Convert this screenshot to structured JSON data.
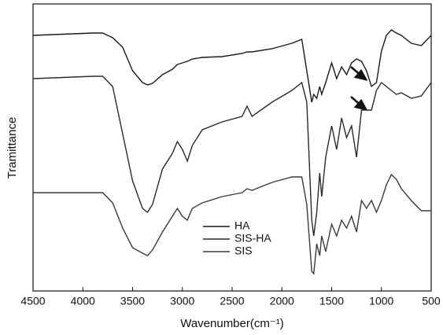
{
  "chart_data": {
    "type": "line",
    "xlabel": "Wavenumber(cm⁻¹)",
    "ylabel": "Tramittance",
    "x": [
      4500,
      4300,
      4100,
      3900,
      3800,
      3700,
      3600,
      3500,
      3400,
      3350,
      3300,
      3200,
      3100,
      3050,
      3000,
      2950,
      2900,
      2800,
      2600,
      2400,
      2350,
      2300,
      2100,
      1900,
      1800,
      1750,
      1700,
      1680,
      1650,
      1620,
      1600,
      1560,
      1500,
      1450,
      1400,
      1350,
      1300,
      1250,
      1200,
      1150,
      1100,
      1050,
      1000,
      950,
      900,
      850,
      800,
      700,
      600,
      500
    ],
    "series": [
      {
        "name": "HA",
        "color": "#1a1a1a",
        "values": [
          325,
          326,
          327,
          328,
          328,
          322,
          310,
          280,
          265,
          262,
          264,
          275,
          282,
          288,
          290,
          292,
          295,
          297,
          298,
          302,
          304,
          304,
          308,
          315,
          320,
          280,
          240,
          250,
          245,
          260,
          250,
          265,
          290,
          270,
          285,
          275,
          290,
          295,
          292,
          280,
          260,
          265,
          305,
          325,
          332,
          328,
          325,
          315,
          312,
          325
        ]
      },
      {
        "name": "SIS-HA",
        "color": "#2a2a2a",
        "values": [
          270,
          271,
          272,
          273,
          273,
          260,
          200,
          140,
          105,
          100,
          110,
          155,
          175,
          190,
          180,
          165,
          185,
          205,
          215,
          222,
          235,
          222,
          240,
          255,
          265,
          240,
          90,
          70,
          100,
          150,
          120,
          170,
          210,
          180,
          220,
          195,
          210,
          170,
          230,
          230,
          230,
          255,
          265,
          260,
          255,
          250,
          252,
          245,
          248,
          265
        ]
      },
      {
        "name": "SIS",
        "color": "#3a3a3a",
        "values": [
          125,
          125,
          125,
          125,
          125,
          112,
          80,
          55,
          48,
          45,
          52,
          75,
          95,
          105,
          95,
          90,
          105,
          112,
          120,
          125,
          130,
          128,
          138,
          145,
          145,
          110,
          25,
          22,
          60,
          45,
          70,
          50,
          85,
          70,
          90,
          80,
          95,
          75,
          115,
          105,
          115,
          100,
          115,
          135,
          148,
          142,
          130,
          115,
          102,
          102
        ]
      }
    ],
    "xlim": [
      4500,
      500
    ],
    "xticks": [
      4500,
      4000,
      3500,
      3000,
      2500,
      2000,
      1500,
      1000,
      500
    ],
    "ylim": [
      0,
      365
    ],
    "grid": false
  }
}
